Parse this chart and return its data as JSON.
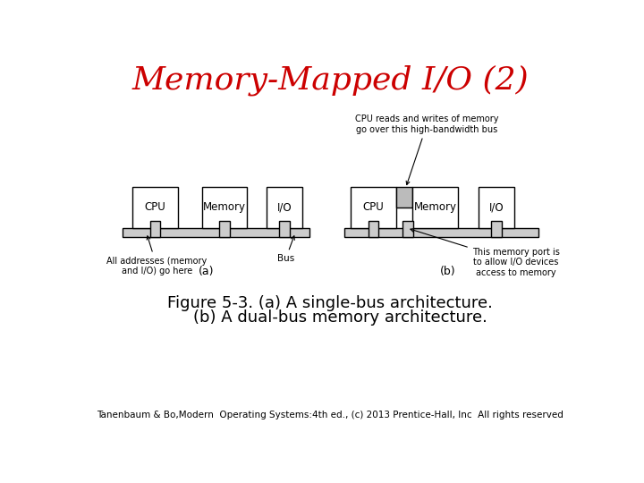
{
  "title": "Memory-Mapped I/O (2)",
  "title_color": "#cc0000",
  "title_fontsize": 26,
  "figure_caption_line1": "Figure 5-3. (a) A single-bus architecture.",
  "figure_caption_line2": "    (b) A dual-bus memory architecture.",
  "caption_fontsize": 13,
  "footer": "Tanenbaum & Bo,Modern  Operating Systems:4th ed., (c) 2013 Prentice-Hall, Inc  All rights reserved",
  "footer_fontsize": 7.5,
  "bg_color": "#ffffff",
  "box_edge_color": "#000000",
  "bus_color": "#cccccc",
  "memory_port_color": "#bbbbbb",
  "label_a": "(a)",
  "label_b": "(b)",
  "annotation_bus": "Bus",
  "annotation_addr": "All addresses (memory\nand I/O) go here",
  "annotation_cpu_reads": "CPU reads and writes of memory\ngo over this high-bandwidth bus",
  "annotation_mem_port": "This memory port is\nto allow I/O devices\naccess to memory"
}
